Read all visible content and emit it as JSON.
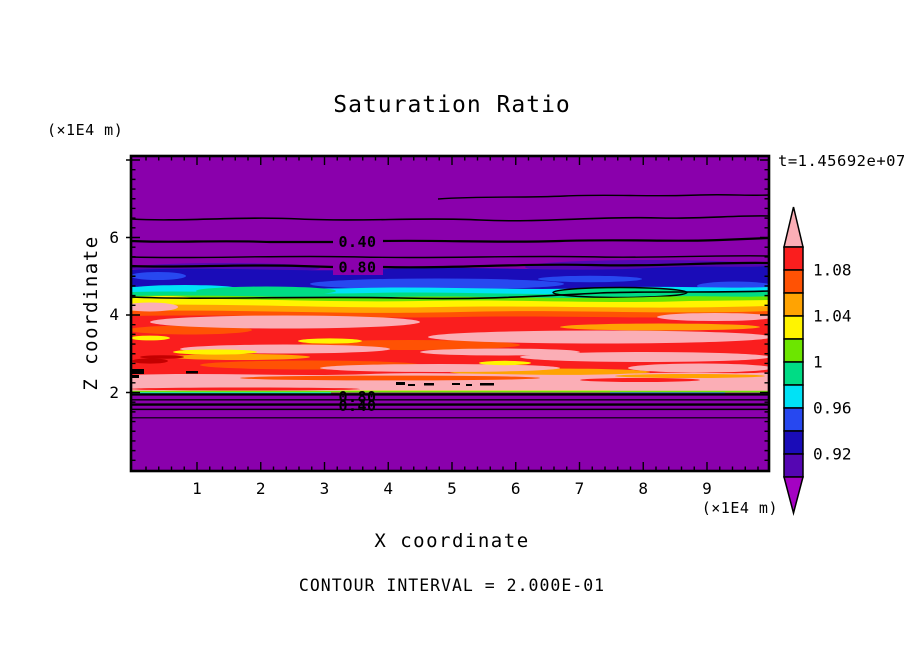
{
  "title": "Saturation Ratio",
  "time_annotation": "t=1.45692e+07",
  "axes": {
    "y_label": "Z coordinate",
    "y_unit": "(×1E4 m)",
    "y_ticks": [
      "6",
      "4",
      "2"
    ],
    "x_label": "X coordinate",
    "x_unit": "(×1E4 m)",
    "x_ticks": [
      "1",
      "2",
      "3",
      "4",
      "5",
      "6",
      "7",
      "8",
      "9"
    ]
  },
  "contour_labels": {
    "upper_040": "0.40",
    "upper_080": "0.80",
    "lower_080": "0.80",
    "lower_040": "0.40"
  },
  "footer_caption": "CONTOUR INTERVAL = 2.000E-01",
  "colorbar": {
    "labels": [
      "1.08",
      "1.04",
      "1",
      "0.96",
      "0.92"
    ]
  },
  "palette": {
    "purple": "#8A00AC",
    "violet": "#5506B2",
    "navy": "#1A0CB8",
    "blue": "#2748F0",
    "cyan": "#00E2F6",
    "springgreen": "#00DC85",
    "chartreuse": "#6CE600",
    "yellow": "#FFF400",
    "orange": "#FFA302",
    "orangered": "#FF5204",
    "red": "#FA1E1E",
    "pink": "#FBAEB6",
    "magenta": "#A402C2",
    "darkred": "#C40000",
    "black": "#000000"
  },
  "chart_data": {
    "type": "filled_contour",
    "title": "Saturation Ratio",
    "time_annotation": "t=1.45692e+07",
    "xlabel": "X coordinate",
    "x_unit": "(×1E4 m)",
    "x_range": [
      0,
      10
    ],
    "x_tick_values": [
      1,
      2,
      3,
      4,
      5,
      6,
      7,
      8,
      9
    ],
    "ylabel": "Z coordinate",
    "y_unit": "(×1E4 m)",
    "y_range": [
      0,
      8.1
    ],
    "y_tick_values": [
      2,
      4,
      6
    ],
    "grid": false,
    "legend_position": "right-colorbar",
    "fill_levels": [
      0.9,
      0.92,
      0.94,
      0.96,
      0.98,
      1.0,
      1.02,
      1.04,
      1.06,
      1.08,
      1.1
    ],
    "colorbar_tick_labels": [
      1.08,
      1.04,
      1,
      0.96,
      0.92
    ],
    "colorbar_colors_top_to_bottom": [
      "#FA1E1E",
      "#FF5204",
      "#FFA302",
      "#FFF400",
      "#6CE600",
      "#00DC85",
      "#00E2F6",
      "#2748F0",
      "#1A0CB8",
      "#5506B2"
    ],
    "above_range_color": "#FBAEB6",
    "below_range_color": "#A402C2",
    "background_field_color": "#8A00AC",
    "line_contour_interval": 0.2,
    "contour_interval_caption": "CONTOUR INTERVAL = 2.000E-01",
    "labeled_line_contours_upper_z": [
      {
        "value": 0.4,
        "z": 5.9
      },
      {
        "value": 0.8,
        "z": 5.3
      }
    ],
    "labeled_line_contours_lower_z": [
      {
        "value": 0.8,
        "z": 1.95
      },
      {
        "value": 0.4,
        "z": 1.7
      }
    ],
    "vertical_structure": [
      {
        "z_range": [
          0.0,
          1.35
        ],
        "saturation_ratio": "< 0.2 (deep purple, far below range)"
      },
      {
        "z_range": [
          1.35,
          2.0
        ],
        "saturation_ratio": "0.2 to 0.9, rising sharply (stacked 0.2/0.4/0.6/0.8 line contours)"
      },
      {
        "z_range": [
          2.0,
          2.55
        ],
        "saturation_ratio": "> 1.10 (pink supersaturated band with small black contour specks)"
      },
      {
        "z_range": [
          2.4,
          4.1
        ],
        "saturation_ratio": "1.06 - 1.10 (red/orange turbulent layer with pink >1.10 streaks)"
      },
      {
        "z_range": [
          4.1,
          4.55
        ],
        "saturation_ratio": "0.98 - 1.06 (yellow/green/cyan transition, 1.0 contour line)"
      },
      {
        "z_range": [
          4.55,
          5.25
        ],
        "saturation_ratio": "0.90 - 0.98 (blue/navy band)"
      },
      {
        "z_range": [
          5.25,
          8.1
        ],
        "saturation_ratio": "< 0.9 decreasing to ~0 (purple, 0.8/0.6/0.4/0.2 line contours)"
      }
    ]
  }
}
